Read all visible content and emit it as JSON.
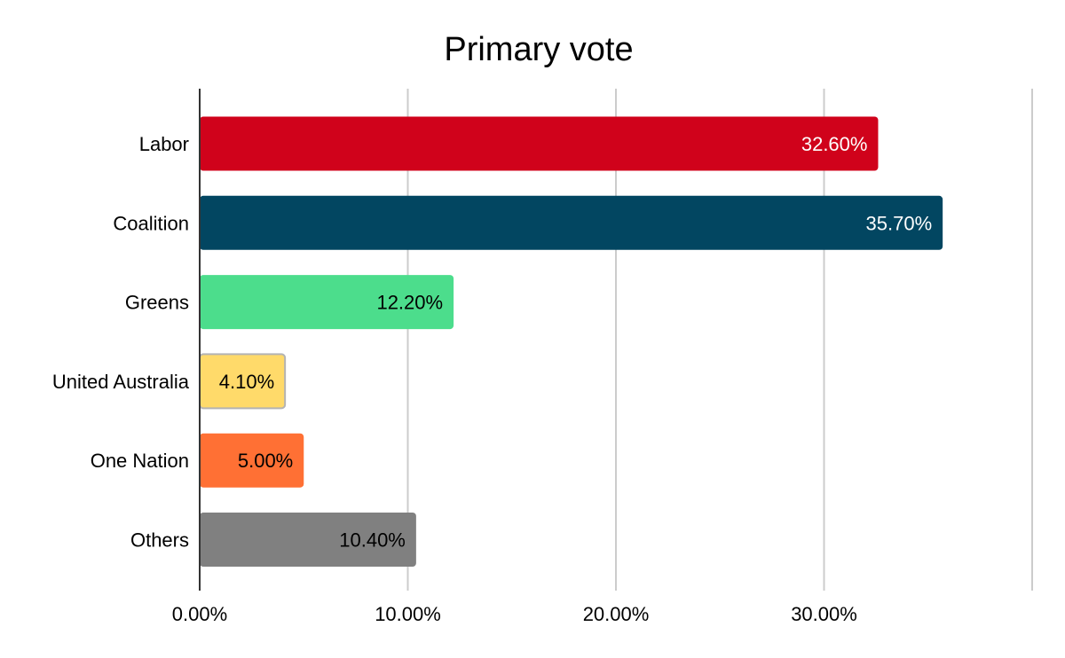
{
  "chart_data": {
    "type": "bar",
    "orientation": "horizontal",
    "title": "Primary vote",
    "xlabel": "",
    "ylabel": "",
    "categories": [
      "Labor",
      "Coalition",
      "Greens",
      "United Australia",
      "One Nation",
      "Others"
    ],
    "values": [
      32.6,
      35.7,
      12.2,
      4.1,
      5.0,
      10.4
    ],
    "data_labels": [
      "32.60%",
      "35.70%",
      "12.20%",
      "4.10%",
      "5.00%",
      "10.40%"
    ],
    "colors": [
      "#d0021b",
      "#024661",
      "#4cdd8c",
      "#ffda6a",
      "#ff7034",
      "#808080"
    ],
    "label_colors": [
      "#ffffff",
      "#ffffff",
      "#000000",
      "#000000",
      "#000000",
      "#000000"
    ],
    "xlim": [
      0,
      40
    ],
    "xticks": [
      0,
      10,
      20,
      30,
      40
    ],
    "xtick_labels": [
      "0.00%",
      "10.00%",
      "20.00%",
      "30.00%",
      ""
    ],
    "grid": true,
    "legend": "none"
  }
}
